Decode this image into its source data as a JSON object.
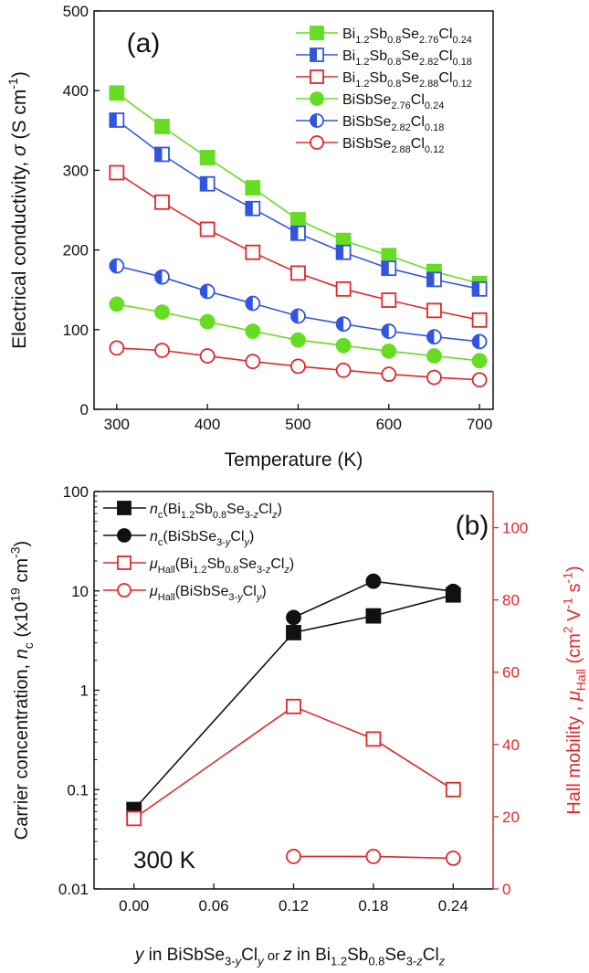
{
  "chart_data": [
    {
      "type": "line",
      "panel_label": "(a)",
      "xlabel": "Temperature (K)",
      "ylabel_text": "Electrical conductivity, ",
      "ylabel_symbol": "σ",
      "ylabel_unit": " (S cm",
      "ylabel_unit_sup": "-1",
      "ylabel_close": ")",
      "xlim": [
        275,
        715
      ],
      "ylim": [
        0,
        500
      ],
      "x_ticks": [
        300,
        400,
        500,
        600,
        700
      ],
      "x_tick_labels": [
        "300",
        "400",
        "500",
        "600",
        "700"
      ],
      "y_ticks": [
        0,
        100,
        200,
        300,
        400,
        500
      ],
      "y_tick_labels": [
        "0",
        "100",
        "200",
        "300",
        "400",
        "500"
      ],
      "legend_position": "top-right",
      "x": [
        300,
        350,
        400,
        450,
        500,
        550,
        600,
        650,
        700
      ],
      "series": [
        {
          "legend": [
            [
              "Bi",
              ""
            ],
            [
              "1.2",
              "sub"
            ],
            [
              "Sb",
              ""
            ],
            [
              "0.8",
              "sub"
            ],
            [
              "Se",
              ""
            ],
            [
              "2.76",
              "sub"
            ],
            [
              "Cl",
              ""
            ],
            [
              "0.24",
              "sub"
            ]
          ],
          "color": "#66dd22",
          "marker": "square",
          "fill": "full",
          "values": [
            397,
            355,
            316,
            278,
            238,
            212,
            193,
            173,
            158
          ]
        },
        {
          "legend": [
            [
              "Bi",
              ""
            ],
            [
              "1.2",
              "sub"
            ],
            [
              "Sb",
              ""
            ],
            [
              "0.8",
              "sub"
            ],
            [
              "Se",
              ""
            ],
            [
              "2.82",
              "sub"
            ],
            [
              "Cl",
              ""
            ],
            [
              "0.18",
              "sub"
            ]
          ],
          "color": "#3355dd",
          "marker": "square",
          "fill": "half",
          "values": [
            363,
            320,
            283,
            252,
            221,
            197,
            177,
            163,
            151
          ]
        },
        {
          "legend": [
            [
              "Bi",
              ""
            ],
            [
              "1.2",
              "sub"
            ],
            [
              "Sb",
              ""
            ],
            [
              "0.8",
              "sub"
            ],
            [
              "Se",
              ""
            ],
            [
              "2.88",
              "sub"
            ],
            [
              "Cl",
              ""
            ],
            [
              "0.12",
              "sub"
            ]
          ],
          "color": "#e0282c",
          "marker": "square",
          "fill": "open",
          "values": [
            297,
            260,
            226,
            197,
            171,
            151,
            137,
            124,
            112
          ]
        },
        {
          "legend": [
            [
              "BiSbSe",
              ""
            ],
            [
              "2.76",
              "sub"
            ],
            [
              "Cl",
              ""
            ],
            [
              "0.24",
              "sub"
            ]
          ],
          "color": "#66dd22",
          "marker": "circle",
          "fill": "full",
          "values": [
            132,
            122,
            110,
            98,
            87,
            80,
            73,
            67,
            61
          ]
        },
        {
          "legend": [
            [
              "BiSbSe",
              ""
            ],
            [
              "2.82",
              "sub"
            ],
            [
              "Cl",
              ""
            ],
            [
              "0.18",
              "sub"
            ]
          ],
          "color": "#3355dd",
          "marker": "circle",
          "fill": "half",
          "values": [
            180,
            166,
            148,
            133,
            117,
            107,
            98,
            91,
            85
          ]
        },
        {
          "legend": [
            [
              "BiSbSe",
              ""
            ],
            [
              "2.88",
              "sub"
            ],
            [
              "Cl",
              ""
            ],
            [
              "0.12",
              "sub"
            ]
          ],
          "color": "#e0282c",
          "marker": "circle",
          "fill": "open",
          "values": [
            77,
            74,
            67,
            60,
            54,
            49,
            44,
            40,
            37
          ]
        }
      ]
    },
    {
      "type": "line",
      "panel_label": "(b)",
      "annotation": "300 K",
      "xlim": [
        -0.03,
        0.27
      ],
      "ylim_left": [
        0.01,
        100
      ],
      "y_scale_left": "log",
      "ylim_right": [
        0,
        110
      ],
      "x_ticks": [
        0.0,
        0.06,
        0.12,
        0.18,
        0.24
      ],
      "x_tick_labels": [
        "0.00",
        "0.06",
        "0.12",
        "0.18",
        "0.24"
      ],
      "y_left_ticks": [
        0.01,
        0.1,
        1,
        10,
        100
      ],
      "y_left_tick_labels": [
        "0.01",
        "0.1",
        "1",
        "10",
        "100"
      ],
      "y_right_ticks": [
        0,
        20,
        40,
        60,
        80,
        100
      ],
      "y_right_tick_labels": [
        "0",
        "20",
        "40",
        "60",
        "80",
        "100"
      ],
      "xlabel": [
        [
          "y",
          "it"
        ],
        [
          " in BiSbSe",
          ""
        ],
        [
          "3-",
          "sub"
        ],
        [
          "y",
          "subit"
        ],
        [
          "Cl",
          ""
        ],
        [
          "y",
          "subit"
        ],
        [
          " or ",
          "small"
        ],
        [
          "z",
          "it"
        ],
        [
          " in Bi",
          ""
        ],
        [
          "1.2",
          "sub"
        ],
        [
          "Sb",
          ""
        ],
        [
          "0.8",
          "sub"
        ],
        [
          "Se",
          ""
        ],
        [
          "3-",
          "sub"
        ],
        [
          "z",
          "subit"
        ],
        [
          "Cl",
          ""
        ],
        [
          "z",
          "subit"
        ]
      ],
      "ylabel_left": [
        [
          "Carrier concentration, ",
          ""
        ],
        [
          "n",
          "it"
        ],
        [
          "c",
          "sub"
        ],
        [
          " (x10",
          ""
        ],
        [
          "19",
          "sup"
        ],
        [
          " cm",
          ""
        ],
        [
          "-3",
          "sup"
        ],
        [
          ")",
          ""
        ]
      ],
      "ylabel_right": [
        [
          "Hall mobility , ",
          ""
        ],
        [
          "μ",
          "it"
        ],
        [
          "Hall",
          "sub"
        ],
        [
          " (cm",
          ""
        ],
        [
          "2",
          "sup"
        ],
        [
          " V",
          ""
        ],
        [
          "-1",
          "sup"
        ],
        [
          " s",
          ""
        ],
        [
          "-1",
          "sup"
        ],
        [
          ")",
          ""
        ]
      ],
      "legend_position": "top-left",
      "series": [
        {
          "legend": [
            [
              "n",
              "it"
            ],
            [
              "c",
              "sub"
            ],
            [
              "(Bi",
              ""
            ],
            [
              "1.2",
              "sub"
            ],
            [
              "Sb",
              ""
            ],
            [
              "0.8",
              "sub"
            ],
            [
              "Se",
              ""
            ],
            [
              "3-",
              "sub"
            ],
            [
              "z",
              "subit"
            ],
            [
              "Cl",
              ""
            ],
            [
              "z",
              "subit"
            ],
            [
              ")",
              ""
            ]
          ],
          "axis": "left",
          "color": "#111111",
          "marker": "square",
          "fill": "full",
          "x": [
            0.0,
            0.12,
            0.18,
            0.24
          ],
          "values": [
            0.063,
            3.8,
            5.6,
            9.1
          ]
        },
        {
          "legend": [
            [
              "n",
              "it"
            ],
            [
              "c",
              "sub"
            ],
            [
              "(BiSbSe",
              ""
            ],
            [
              "3-",
              "sub"
            ],
            [
              "y",
              "subit"
            ],
            [
              "Cl",
              ""
            ],
            [
              "y",
              "subit"
            ],
            [
              ")",
              ""
            ]
          ],
          "axis": "left",
          "color": "#111111",
          "marker": "circle",
          "fill": "full",
          "x": [
            0.12,
            0.18,
            0.24
          ],
          "values": [
            5.4,
            12.5,
            9.9
          ]
        },
        {
          "legend": [
            [
              "μ",
              "it"
            ],
            [
              "Hall",
              "sub"
            ],
            [
              "(Bi",
              ""
            ],
            [
              "1.2",
              "sub"
            ],
            [
              "Sb",
              ""
            ],
            [
              "0.8",
              "sub"
            ],
            [
              "Se",
              ""
            ],
            [
              "3-",
              "sub"
            ],
            [
              "z",
              "subit"
            ],
            [
              "Cl",
              ""
            ],
            [
              "z",
              "subit"
            ],
            [
              ")",
              ""
            ]
          ],
          "axis": "right",
          "color": "#e0282c",
          "marker": "square",
          "fill": "open",
          "x": [
            0.0,
            0.12,
            0.18,
            0.24
          ],
          "values": [
            19.5,
            50.5,
            41.5,
            27.5
          ]
        },
        {
          "legend": [
            [
              "μ",
              "it"
            ],
            [
              "Hall",
              "sub"
            ],
            [
              "(BiSbSe",
              ""
            ],
            [
              "3-",
              "sub"
            ],
            [
              "y",
              "subit"
            ],
            [
              "Cl",
              ""
            ],
            [
              "y",
              "subit"
            ],
            [
              ")",
              ""
            ]
          ],
          "axis": "right",
          "color": "#e0282c",
          "marker": "circle",
          "fill": "open",
          "x": [
            0.12,
            0.18,
            0.24
          ],
          "values": [
            9.0,
            9.0,
            8.5
          ]
        }
      ]
    }
  ]
}
